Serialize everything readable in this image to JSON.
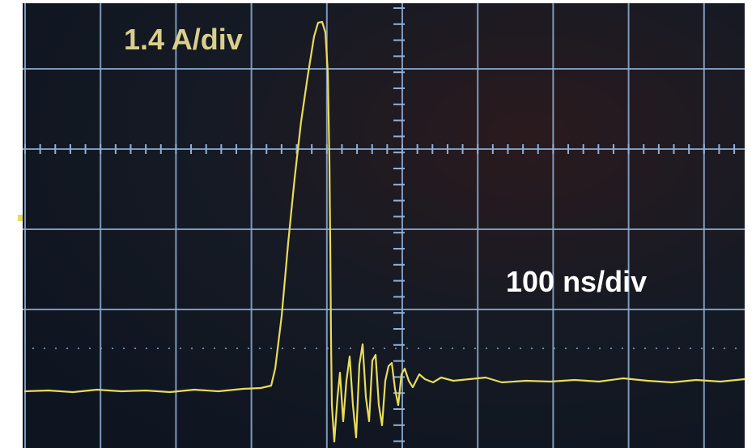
{
  "labels": {
    "current_scale": "1.4 A/div",
    "time_scale": "100 ns/div"
  }
}
